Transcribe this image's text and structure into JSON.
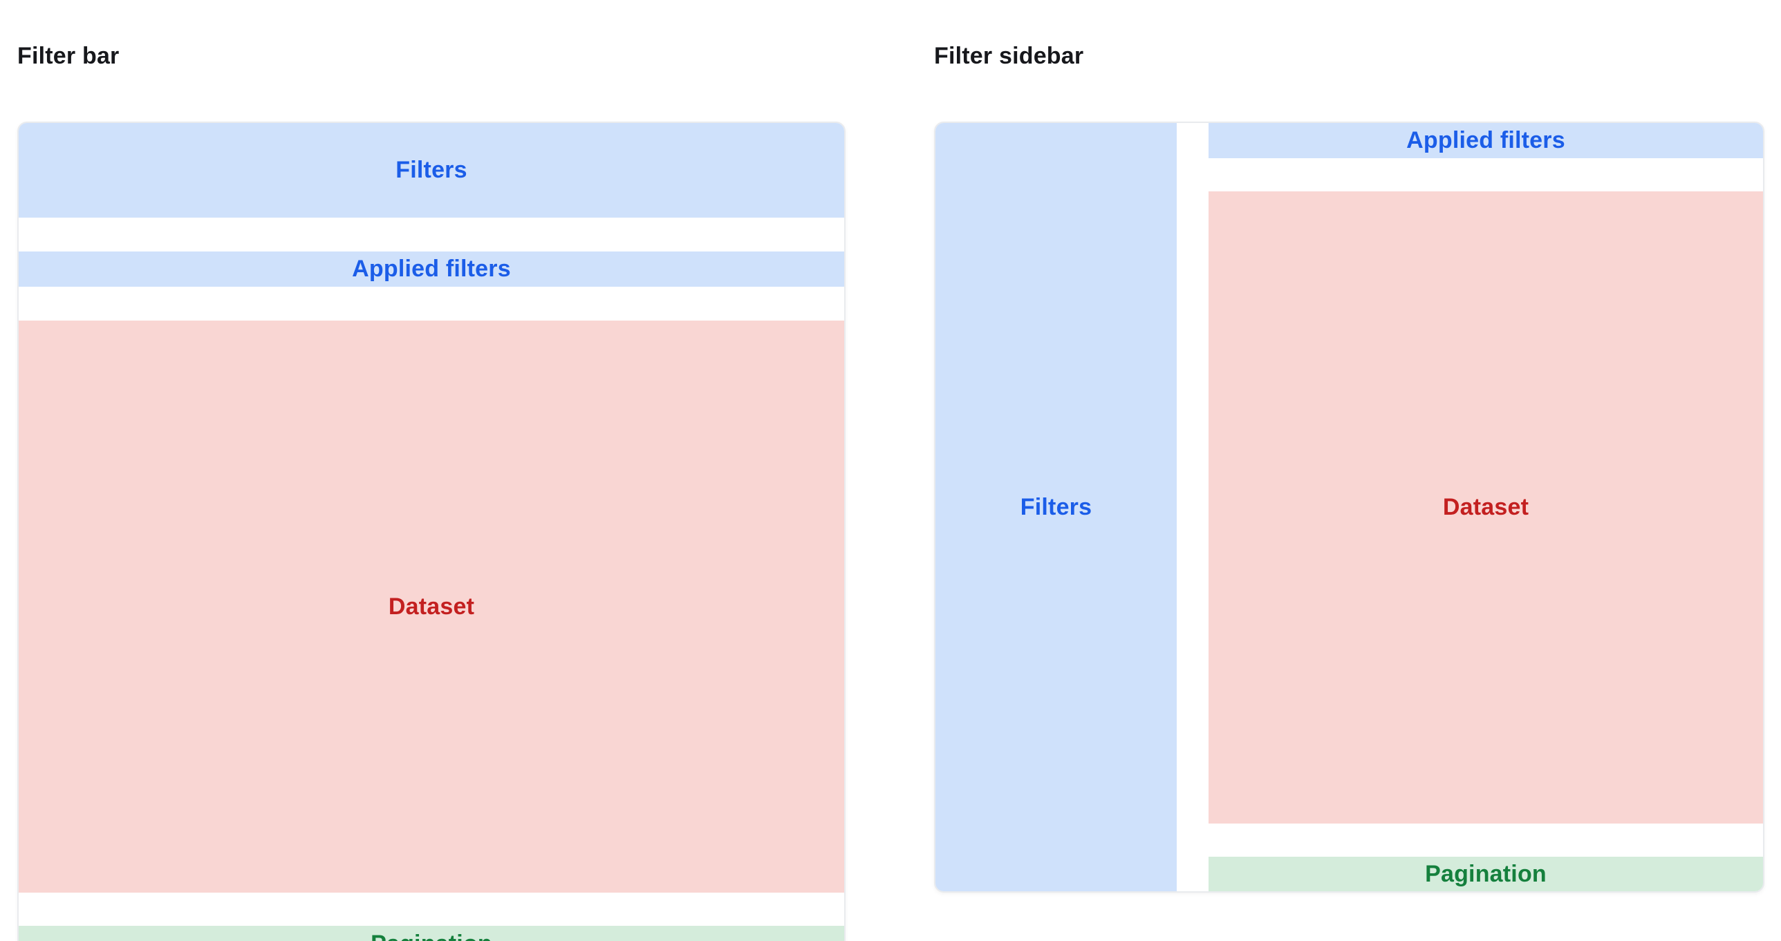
{
  "colors": {
    "page_bg": "#ffffff",
    "title_text": "#17181c",
    "card_border": "#e9ebee",
    "blue_bg": "#cfe1fb",
    "blue_text": "#1b5de8",
    "red_bg": "#f9d6d3",
    "red_text": "#c32020",
    "green_bg": "#d4ecdb",
    "green_text": "#15803d"
  },
  "panels": {
    "filter_bar": {
      "title": "Filter bar",
      "filters_label": "Filters",
      "applied_filters_label": "Applied filters",
      "dataset_label": "Dataset",
      "pagination_label": "Pagination"
    },
    "filter_sidebar": {
      "title": "Filter sidebar",
      "filters_label": "Filters",
      "applied_filters_label": "Applied filters",
      "dataset_label": "Dataset",
      "pagination_label": "Pagination"
    }
  }
}
